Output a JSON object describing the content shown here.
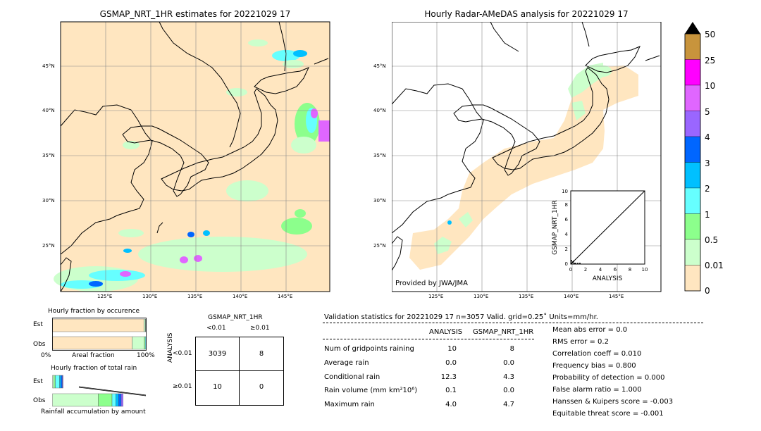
{
  "left_map": {
    "title": "GSMAP_NRT_1HR estimates for 20221029 17",
    "lat_labels": [
      "45°N",
      "40°N",
      "35°N",
      "30°N",
      "25°N"
    ],
    "lon_labels": [
      "125°E",
      "130°E",
      "135°E",
      "140°E",
      "145°E"
    ]
  },
  "right_map": {
    "title": "Hourly Radar-AMeDAS analysis for 20221029 17",
    "lat_labels": [
      "45°N",
      "40°N",
      "35°N",
      "30°N",
      "25°N"
    ],
    "lon_labels": [
      "125°E",
      "130°E",
      "135°E",
      "140°E",
      "145°E"
    ],
    "credit": "Provided by JWA/JMA"
  },
  "colorbar": {
    "labels": [
      "50",
      "25",
      "10",
      "5",
      "4",
      "3",
      "2",
      "1",
      "0.5",
      "0.01",
      "0"
    ],
    "colors": [
      "#c8943c",
      "#ff00ff",
      "#e066ff",
      "#9a66ff",
      "#0066ff",
      "#00c0ff",
      "#66ffff",
      "#8cff8c",
      "#ccffcc",
      "#ffe6c0"
    ]
  },
  "inset": {
    "xlabel": "ANALYSIS",
    "ylabel": "GSMAP_NRT_1HR",
    "ticks": [
      "0",
      "2",
      "4",
      "6",
      "8",
      "10"
    ]
  },
  "fraction_occurrence": {
    "title": "Hourly fraction by occurence",
    "rows": [
      "Est",
      "Obs"
    ],
    "xlabel": "Areal fraction",
    "x_left": "0%",
    "x_right": "100%"
  },
  "fraction_amount": {
    "title": "Hourly fraction of total rain",
    "rows": [
      "Est",
      "Obs"
    ],
    "xlabel": "Rainfall accumulation by amount"
  },
  "contingency": {
    "title": "GSMAP_NRT_1HR",
    "col_headers": [
      "<0.01",
      "≥0.01"
    ],
    "row_headers": [
      "<0.01",
      "≥0.01"
    ],
    "side_label": "ANALYSIS",
    "cells": [
      [
        "3039",
        "8"
      ],
      [
        "10",
        "0"
      ]
    ]
  },
  "validation": {
    "header": "Validation statistics for 20221029 17  n=3057 Valid. grid=0.25˚ Units=mm/hr.",
    "col_analysis": "ANALYSIS",
    "col_gsmap": "GSMAP_NRT_1HR",
    "rows": [
      {
        "label": "Num of gridpoints raining",
        "analysis": "10",
        "gsmap": "8"
      },
      {
        "label": "Average rain",
        "analysis": "0.0",
        "gsmap": "0.0"
      },
      {
        "label": "Conditional rain",
        "analysis": "12.3",
        "gsmap": "4.3"
      },
      {
        "label": "Rain volume (mm km²10⁶)",
        "analysis": "0.1",
        "gsmap": "0.0"
      },
      {
        "label": "Maximum rain",
        "analysis": "4.0",
        "gsmap": "4.7"
      }
    ],
    "scores": [
      "Mean abs error =    0.0",
      "RMS error =    0.2",
      "Correlation coeff =  0.010",
      "Frequency bias =  0.800",
      "Probability of detection =  0.000",
      "False alarm ratio =  1.000",
      "Hanssen & Kuipers score = -0.003",
      "Equitable threat score = -0.001"
    ]
  },
  "chart_data": [
    {
      "type": "bar",
      "title": "Hourly fraction by occurence",
      "categories": [
        "Est",
        "Obs"
      ],
      "xlabel": "Areal fraction",
      "xlim": [
        0,
        100
      ],
      "series": [
        {
          "color": "#ffe6c0",
          "values": [
            97.5,
            85.0
          ]
        },
        {
          "color": "#ccffcc",
          "values": [
            1.5,
            13.0
          ]
        },
        {
          "color": "#8cff8c",
          "values": [
            0.5,
            1.0
          ]
        },
        {
          "color": "#66ffff",
          "values": [
            0.5,
            1.0
          ]
        }
      ]
    },
    {
      "type": "bar",
      "title": "Hourly fraction of total rain",
      "categories": [
        "Est",
        "Obs"
      ],
      "xlabel": "Rainfall accumulation by amount",
      "series": [
        {
          "color": "#ccffcc",
          "values": [
            2,
            50
          ]
        },
        {
          "color": "#8cff8c",
          "values": [
            2,
            15
          ]
        },
        {
          "color": "#66ffff",
          "values": [
            6,
            4
          ]
        },
        {
          "color": "#00c0ff",
          "values": [
            2,
            3
          ]
        },
        {
          "color": "#0066ff",
          "values": [
            2,
            3
          ]
        },
        {
          "color": "#9a66ff",
          "values": [
            1,
            2
          ]
        }
      ]
    },
    {
      "type": "table",
      "title": "GSMAP_NRT_1HR",
      "columns": [
        "<0.01",
        "≥0.01"
      ],
      "rows": [
        "<0.01",
        "≥0.01"
      ],
      "values": [
        [
          3039,
          8
        ],
        [
          10,
          0
        ]
      ]
    },
    {
      "type": "scatter",
      "xlabel": "ANALYSIS",
      "ylabel": "GSMAP_NRT_1HR",
      "xlim": [
        0,
        10
      ],
      "ylim": [
        0,
        10
      ]
    }
  ]
}
